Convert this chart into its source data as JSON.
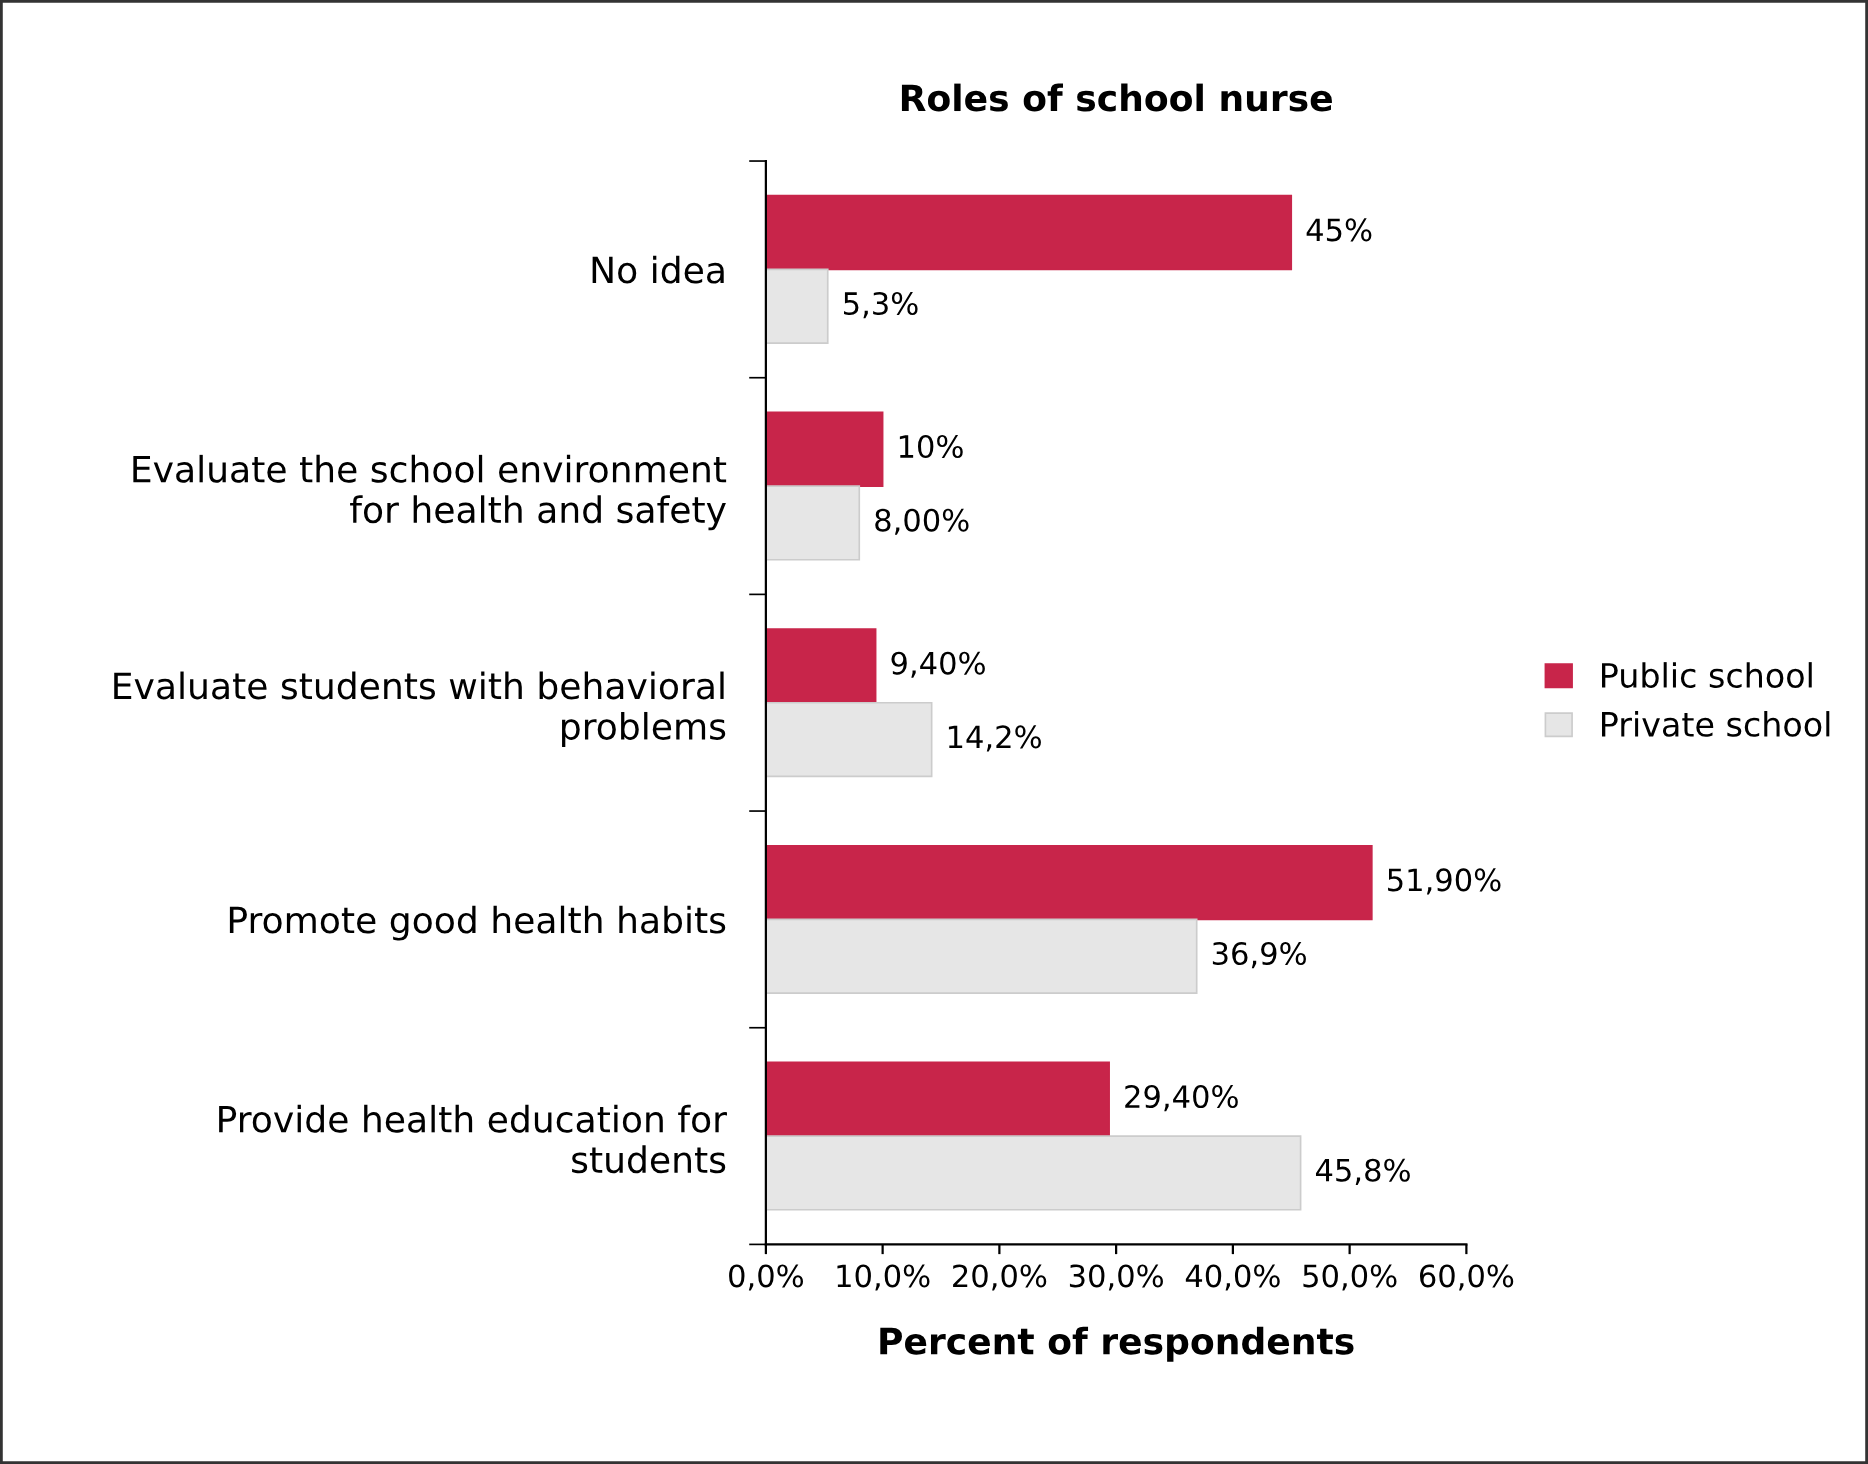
{
  "chart_data": {
    "type": "bar",
    "orientation": "horizontal",
    "title": "Roles of school nurse",
    "xlabel": "Percent of respondents",
    "categories": [
      "No idea",
      "Evaluate the school environment\nfor health and safety",
      "Evaluate students with behavioral\nproblems",
      "Promote good health habits",
      "Provide health education for\nstudents"
    ],
    "series": [
      {
        "name": "Public school",
        "color": "#c8254a",
        "values": [
          45,
          10,
          9.4,
          51.9,
          29.4
        ],
        "value_labels": [
          "45%",
          "10%",
          "9,40%",
          "51,90%",
          "29,40%"
        ]
      },
      {
        "name": "Private school",
        "color": "#e6e6e6",
        "values": [
          5.3,
          8.0,
          14.2,
          36.9,
          45.8
        ],
        "value_labels": [
          "5,3%",
          "8,00%",
          "14,2%",
          "36,9%",
          "45,8%"
        ]
      }
    ],
    "xlim": [
      0,
      60
    ],
    "xticks": [
      {
        "value": 0,
        "label": "0,0%"
      },
      {
        "value": 10,
        "label": "10,0%"
      },
      {
        "value": 20,
        "label": "20,0%"
      },
      {
        "value": 30,
        "label": "30,0%"
      },
      {
        "value": 40,
        "label": "40,0%"
      },
      {
        "value": 50,
        "label": "50,0%"
      },
      {
        "value": 60,
        "label": "60,0%"
      }
    ],
    "grid": false,
    "legend": "right"
  }
}
